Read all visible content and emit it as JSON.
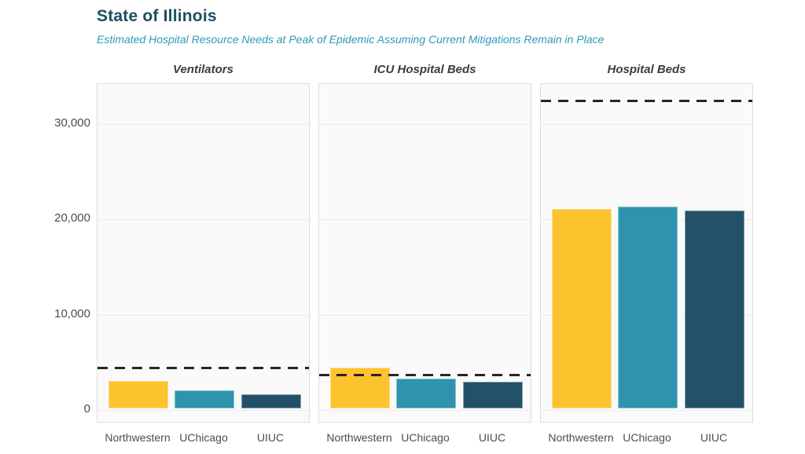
{
  "header": {
    "title": "State of Illinois",
    "subtitle": "Estimated Hospital Resource Needs at Peak of Epidemic Assuming Current Mitigations Remain in Place"
  },
  "colors": {
    "title_text": "#1d4d63",
    "subtitle_text": "#2d99ba",
    "panel_title_text": "#3c3c3c",
    "axis_text": "#4d4d4d",
    "panel_background": "#fafafa",
    "panel_border": "#dcdcdc",
    "gridline": "#ececec",
    "capacity_line": "#262626",
    "northwestern_bar": "#fdc32e",
    "uchicago_bar": "#2d93ae",
    "uiuc_bar": "#225168"
  },
  "chart_data": {
    "type": "bar",
    "title": "State of Illinois",
    "subtitle": "Estimated Hospital Resource Needs at Peak of Epidemic Assuming Current Mitigations Remain in Place",
    "categories": [
      "Northwestern",
      "UChicago",
      "UIUC"
    ],
    "series_colors": [
      "#fdc32e",
      "#2d93ae",
      "#225168"
    ],
    "ylim": [
      0,
      34200
    ],
    "yticks": [
      0,
      10000,
      20000,
      30000
    ],
    "ytick_labels": [
      "0",
      "10,000",
      "20,000",
      "30,000"
    ],
    "grid": true,
    "capacity_line_style": "dashed",
    "panels": [
      {
        "title": "Ventilators",
        "values": [
          2900,
          1900,
          1500
        ],
        "capacity_dashed_line": 4450
      },
      {
        "title": "ICU Hospital Beds",
        "values": [
          4300,
          3100,
          2800
        ],
        "capacity_dashed_line": 3700
      },
      {
        "title": "Hospital Beds",
        "values": [
          20900,
          21200,
          20800
        ],
        "capacity_dashed_line": 32500
      }
    ]
  }
}
